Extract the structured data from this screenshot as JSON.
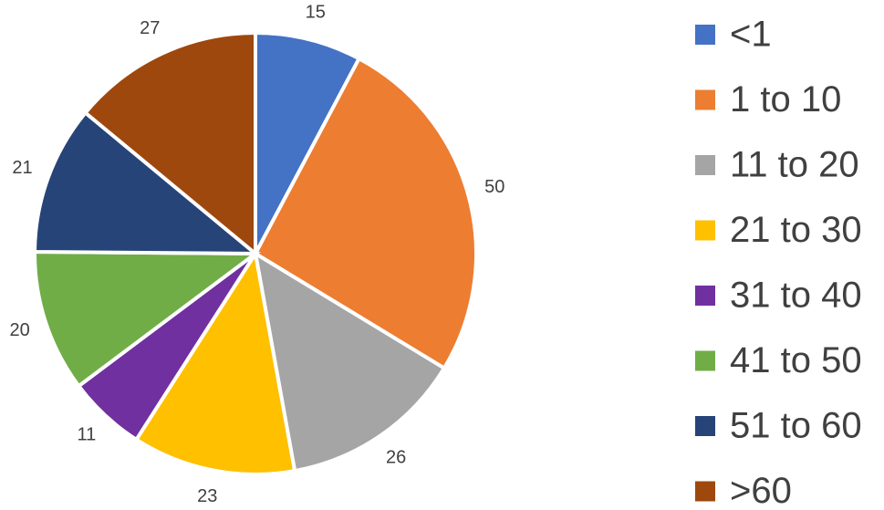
{
  "chart_data": {
    "type": "pie",
    "categories": [
      "<1",
      "1 to 10",
      "11 to 20",
      "21 to 30",
      "31 to 40",
      "41 to 50",
      "51 to 60",
      ">60"
    ],
    "values": [
      15,
      50,
      26,
      23,
      11,
      20,
      21,
      27
    ],
    "colors": [
      "#4472c4",
      "#ed7d31",
      "#a5a5a5",
      "#ffc000",
      "#7030a0",
      "#70ad47",
      "#264478",
      "#9e480e"
    ],
    "legend": "right"
  }
}
